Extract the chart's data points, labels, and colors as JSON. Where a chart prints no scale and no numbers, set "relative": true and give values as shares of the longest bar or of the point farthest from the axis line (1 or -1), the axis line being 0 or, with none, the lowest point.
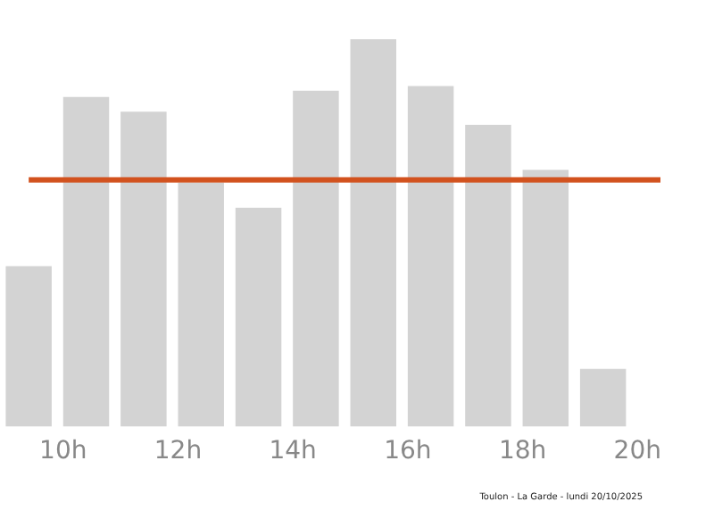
{
  "chart_data": {
    "type": "bar",
    "relative": true,
    "x": [
      9.4,
      10.4,
      11.4,
      12.4,
      13.4,
      14.4,
      15.4,
      16.4,
      17.4,
      18.4,
      19.4
    ],
    "values": [
      0.414,
      0.851,
      0.813,
      0.63,
      0.565,
      0.867,
      1,
      0.879,
      0.779,
      0.663,
      0.149
    ],
    "color": "#d3d3d3",
    "xlim": [
      8.9,
      20.4
    ],
    "xticks": [
      {
        "value": 10,
        "label": "10h"
      },
      {
        "value": 12,
        "label": "12h"
      },
      {
        "value": 14,
        "label": "14h"
      },
      {
        "value": 16,
        "label": "16h"
      },
      {
        "value": 18,
        "label": "18h"
      },
      {
        "value": 20,
        "label": "20h"
      }
    ],
    "ref_lines": [
      {
        "axis": "y",
        "value": 0.637,
        "color": "#d2521e"
      }
    ],
    "annotations": [
      "Toulon - La Garde - lundi 20/10/2025"
    ],
    "grid": false,
    "legend": false
  }
}
